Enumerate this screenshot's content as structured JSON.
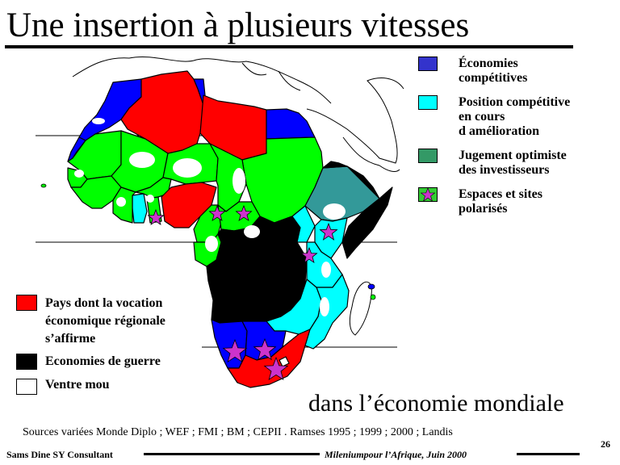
{
  "title": "Une insertion à plusieurs vitesses",
  "subtitle": "dans l’économie mondiale",
  "legend_right": [
    {
      "label": "Économies\ncompétitives",
      "color": "#3333cc"
    },
    {
      "label": "Position compétitive\nen cours\nd amélioration",
      "color": "#00ffff"
    },
    {
      "label": "Jugement optimiste\ndes investisseurs",
      "color": "#339966"
    },
    {
      "label": "Espaces et sites\npolarisés",
      "color": "#33cc33",
      "icon": "star-icon",
      "star_color": "#cc33cc"
    }
  ],
  "legend_left": [
    {
      "label": "Pays dont la vocation\n économique régionale\n s’affirme",
      "color": "#ff0000"
    },
    {
      "label": "Economies de guerre",
      "color": "#000000"
    },
    {
      "label": "Ventre mou",
      "color": "#ffffff"
    }
  ],
  "sources": "Sources variées Monde Diplo ; WEF ; FMI ; BM ; CEPII . Ramses 1995 ; 1999 ; 2000 ;  Landis",
  "footer": {
    "author": "Sams Dine SY Consultant",
    "event": "Mileniumpour l’Afrique, Juin 2000",
    "page": "26"
  },
  "map_colors": {
    "red": "#ff0000",
    "blue": "#0000ff",
    "green": "#00ff00",
    "cyan": "#00ffff",
    "teal": "#339999",
    "black": "#000000",
    "star": "#cc33cc"
  }
}
